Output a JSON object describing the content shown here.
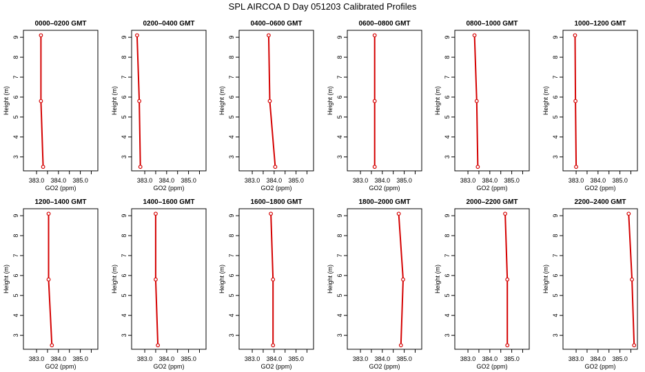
{
  "title": "SPL AIRCOA D  Day 051203  Calibrated Profiles",
  "chart_data": {
    "type": "line",
    "xlabel": "GO2 (ppm)",
    "ylabel": "Height (m)",
    "xlim": [
      382.4,
      385.8
    ],
    "ylim": [
      2.3,
      9.35
    ],
    "x_ticks": [
      "383.0",
      "384.0",
      "385.0"
    ],
    "y_ticks": [
      "3",
      "4",
      "5",
      "6",
      "7",
      "8",
      "9"
    ],
    "heights": [
      9.1,
      5.8,
      2.5
    ],
    "series_color": "#d40000",
    "panels": [
      {
        "title": "0000–0200 GMT",
        "co2": [
          383.2,
          383.2,
          383.3
        ]
      },
      {
        "title": "0200–0400 GMT",
        "co2": [
          382.65,
          382.75,
          382.8
        ]
      },
      {
        "title": "0400–0600 GMT",
        "co2": [
          383.75,
          383.8,
          384.05
        ]
      },
      {
        "title": "0600–0800 GMT",
        "co2": [
          383.65,
          383.65,
          383.65
        ]
      },
      {
        "title": "0800–1000 GMT",
        "co2": [
          383.3,
          383.4,
          383.45
        ]
      },
      {
        "title": "1000–1200 GMT",
        "co2": [
          382.95,
          382.97,
          383.0
        ]
      },
      {
        "title": "1200–1400 GMT",
        "co2": [
          383.55,
          383.55,
          383.7
        ]
      },
      {
        "title": "1400–1600 GMT",
        "co2": [
          383.5,
          383.5,
          383.6
        ]
      },
      {
        "title": "1600–1800 GMT",
        "co2": [
          383.85,
          383.95,
          383.95
        ]
      },
      {
        "title": "1800–2000 GMT",
        "co2": [
          384.75,
          384.95,
          384.85
        ]
      },
      {
        "title": "2000–2200 GMT",
        "co2": [
          384.7,
          384.8,
          384.8
        ]
      },
      {
        "title": "2200–2400 GMT",
        "co2": [
          385.4,
          385.55,
          385.65
        ]
      }
    ]
  }
}
